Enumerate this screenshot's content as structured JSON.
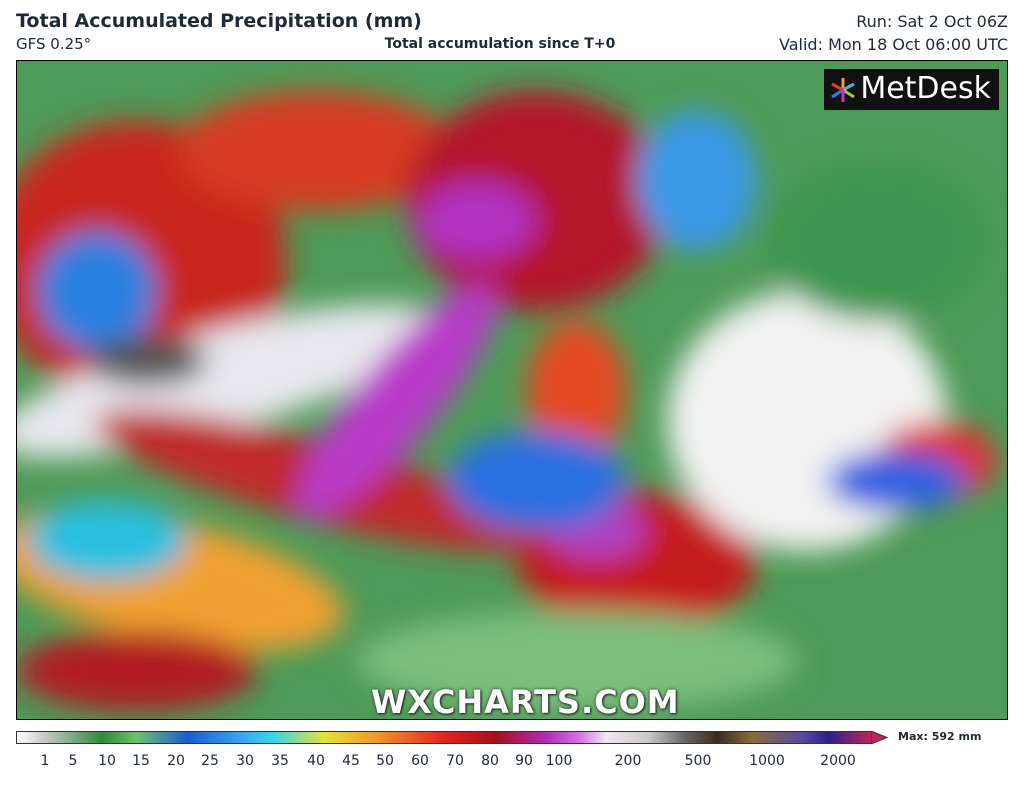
{
  "header": {
    "title": "Total Accumulated Precipitation (mm)",
    "model": "GFS 0.25°",
    "subtitle": "Total accumulation since T+0",
    "run": "Run: Sat 2 Oct 06Z",
    "valid": "Valid: Mon 18 Oct 06:00 UTC"
  },
  "logo": "MetDesk",
  "watermark": "WXCHARTS.COM",
  "legend": {
    "ticks": [
      1,
      5,
      10,
      15,
      20,
      25,
      30,
      35,
      40,
      45,
      50,
      60,
      70,
      80,
      90,
      100,
      200,
      500,
      1000,
      2000
    ],
    "max": "Max: 592 mm"
  }
}
